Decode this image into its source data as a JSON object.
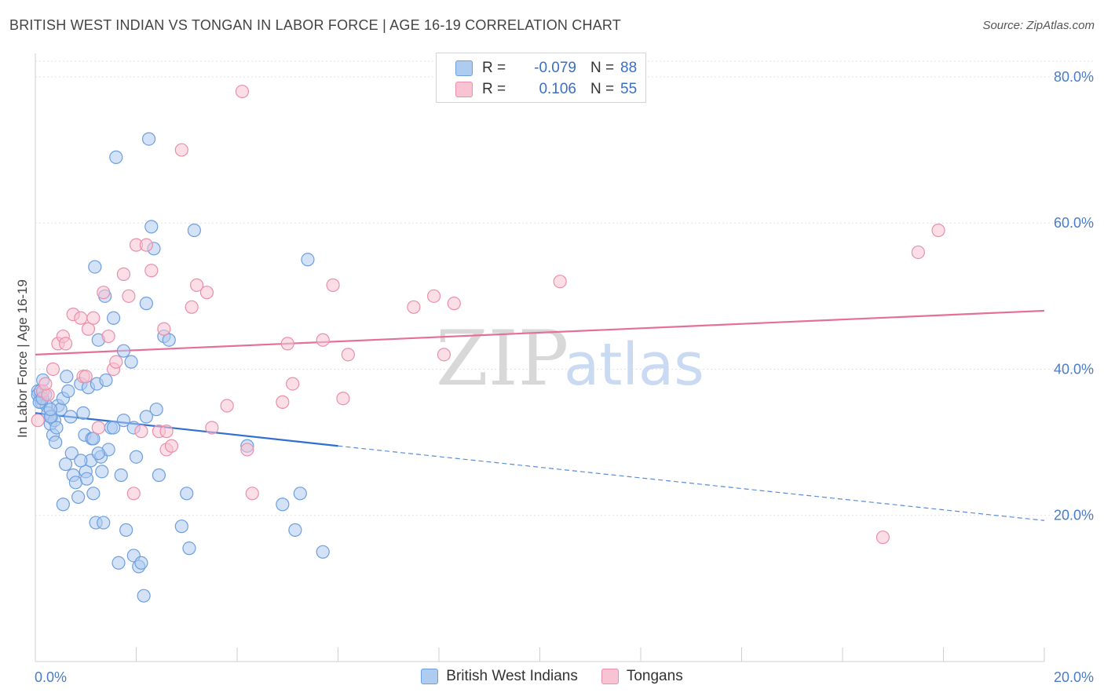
{
  "title": "BRITISH WEST INDIAN VS TONGAN IN LABOR FORCE | AGE 16-19 CORRELATION CHART",
  "source": "Source: ZipAtlas.com",
  "watermark": {
    "zip": "ZIP",
    "atlas": "atlas"
  },
  "legend": {
    "rows": [
      {
        "r_label": "R =",
        "r_value": "-0.079",
        "n_label": "N =",
        "n_value": "88"
      },
      {
        "r_label": "R =",
        "r_value": "0.106",
        "n_label": "N =",
        "n_value": "55"
      }
    ]
  },
  "bottom_legend": {
    "series1": "British West Indians",
    "series2": "Tongans"
  },
  "colors": {
    "blue_fill": "#aecbf0",
    "blue_stroke": "#6d9fdf",
    "blue_line": "#2f6fd1",
    "pink_fill": "#f8c3d2",
    "pink_stroke": "#ea8fab",
    "pink_line": "#e4709a",
    "grid": "#e3e3e3",
    "tick_text": "#4a7cc7"
  },
  "chart_data": {
    "type": "scatter",
    "title": "BRITISH WEST INDIAN VS TONGAN IN LABOR FORCE | AGE 16-19 CORRELATION CHART",
    "xlabel": "",
    "ylabel": "In Labor Force | Age 16-19",
    "xlim": [
      0,
      20
    ],
    "ylim": [
      0,
      83
    ],
    "x_tick_labels": [
      "0.0%",
      "20.0%"
    ],
    "y_ticks": [
      20,
      40,
      60,
      80
    ],
    "y_tick_labels": [
      "20.0%",
      "40.0%",
      "60.0%",
      "80.0%"
    ],
    "series": [
      {
        "name": "British West Indians",
        "r": -0.079,
        "n": 88,
        "trend": {
          "x0": 0,
          "y0": 34.0,
          "x1": 6,
          "y1": 29.5,
          "dash_to_x": 20,
          "dash_to_y": 19.3
        },
        "points": [
          [
            0.05,
            37.0
          ],
          [
            0.1,
            36.0
          ],
          [
            0.12,
            35.5
          ],
          [
            0.15,
            38.5
          ],
          [
            0.2,
            36.5
          ],
          [
            0.22,
            35.0
          ],
          [
            0.25,
            34.0
          ],
          [
            0.3,
            32.5
          ],
          [
            0.32,
            33.5
          ],
          [
            0.35,
            31.0
          ],
          [
            0.38,
            33.0
          ],
          [
            0.4,
            30.0
          ],
          [
            0.45,
            35.0
          ],
          [
            0.5,
            34.5
          ],
          [
            0.55,
            36.0
          ],
          [
            0.6,
            27.0
          ],
          [
            0.62,
            39.0
          ],
          [
            0.65,
            37.0
          ],
          [
            0.7,
            33.5
          ],
          [
            0.72,
            28.5
          ],
          [
            0.75,
            25.5
          ],
          [
            0.8,
            24.5
          ],
          [
            0.85,
            22.5
          ],
          [
            0.9,
            38.0
          ],
          [
            0.95,
            34.0
          ],
          [
            0.98,
            31.0
          ],
          [
            1.0,
            26.0
          ],
          [
            1.02,
            25.0
          ],
          [
            1.05,
            37.5
          ],
          [
            1.1,
            27.5
          ],
          [
            1.12,
            30.5
          ],
          [
            1.15,
            23.0
          ],
          [
            1.18,
            54.0
          ],
          [
            1.2,
            19.0
          ],
          [
            1.22,
            38.0
          ],
          [
            1.25,
            44.0
          ],
          [
            1.3,
            28.0
          ],
          [
            1.32,
            26.0
          ],
          [
            1.35,
            19.0
          ],
          [
            1.38,
            50.0
          ],
          [
            1.4,
            38.5
          ],
          [
            1.45,
            29.0
          ],
          [
            1.5,
            32.0
          ],
          [
            1.55,
            47.0
          ],
          [
            1.6,
            69.0
          ],
          [
            1.65,
            13.5
          ],
          [
            1.7,
            25.5
          ],
          [
            1.75,
            42.5
          ],
          [
            1.8,
            18.0
          ],
          [
            1.9,
            41.0
          ],
          [
            1.95,
            14.5
          ],
          [
            2.0,
            28.0
          ],
          [
            2.05,
            13.0
          ],
          [
            2.1,
            13.5
          ],
          [
            2.15,
            9.0
          ],
          [
            2.2,
            49.0
          ],
          [
            2.25,
            71.5
          ],
          [
            2.3,
            59.5
          ],
          [
            2.35,
            56.5
          ],
          [
            2.45,
            25.5
          ],
          [
            2.55,
            44.5
          ],
          [
            2.65,
            44.0
          ],
          [
            2.9,
            18.5
          ],
          [
            3.0,
            23.0
          ],
          [
            3.05,
            15.5
          ],
          [
            3.15,
            59.0
          ],
          [
            4.2,
            29.5
          ],
          [
            4.9,
            21.5
          ],
          [
            5.15,
            18.0
          ],
          [
            5.4,
            55.0
          ],
          [
            5.7,
            15.0
          ],
          [
            2.4,
            34.5
          ],
          [
            0.05,
            36.5
          ],
          [
            0.08,
            35.5
          ],
          [
            0.1,
            37.0
          ],
          [
            0.14,
            36.0
          ],
          [
            0.3,
            33.5
          ],
          [
            0.42,
            32.0
          ],
          [
            0.55,
            21.5
          ],
          [
            0.9,
            27.5
          ],
          [
            1.25,
            28.5
          ],
          [
            1.55,
            32.0
          ],
          [
            1.75,
            33.0
          ],
          [
            2.2,
            33.5
          ],
          [
            1.95,
            32.0
          ],
          [
            5.25,
            23.0
          ],
          [
            0.3,
            34.5
          ],
          [
            1.15,
            30.5
          ]
        ]
      },
      {
        "name": "Tongans",
        "r": 0.106,
        "n": 55,
        "trend": {
          "x0": 0,
          "y0": 42.0,
          "x1": 20,
          "y1": 48.0
        },
        "points": [
          [
            0.05,
            33.0
          ],
          [
            0.15,
            37.0
          ],
          [
            0.25,
            36.5
          ],
          [
            0.35,
            40.0
          ],
          [
            0.45,
            43.5
          ],
          [
            0.55,
            44.5
          ],
          [
            0.6,
            43.5
          ],
          [
            0.75,
            47.5
          ],
          [
            0.9,
            47.0
          ],
          [
            0.95,
            39.0
          ],
          [
            1.05,
            45.5
          ],
          [
            1.15,
            47.0
          ],
          [
            1.25,
            32.0
          ],
          [
            1.35,
            50.5
          ],
          [
            1.45,
            44.5
          ],
          [
            1.55,
            40.0
          ],
          [
            1.6,
            41.0
          ],
          [
            1.75,
            53.0
          ],
          [
            1.85,
            50.0
          ],
          [
            1.95,
            23.0
          ],
          [
            2.0,
            57.0
          ],
          [
            2.1,
            31.5
          ],
          [
            2.2,
            57.0
          ],
          [
            2.3,
            53.5
          ],
          [
            2.45,
            31.5
          ],
          [
            2.55,
            45.5
          ],
          [
            2.6,
            29.0
          ],
          [
            2.7,
            29.5
          ],
          [
            2.9,
            70.0
          ],
          [
            3.1,
            48.5
          ],
          [
            3.2,
            51.5
          ],
          [
            3.4,
            50.5
          ],
          [
            3.5,
            32.0
          ],
          [
            3.8,
            35.0
          ],
          [
            4.1,
            78.0
          ],
          [
            4.2,
            29.0
          ],
          [
            4.3,
            23.0
          ],
          [
            4.9,
            35.5
          ],
          [
            5.0,
            43.5
          ],
          [
            5.1,
            38.0
          ],
          [
            5.7,
            44.0
          ],
          [
            5.9,
            51.5
          ],
          [
            6.1,
            36.0
          ],
          [
            6.2,
            42.0
          ],
          [
            7.5,
            48.5
          ],
          [
            7.9,
            50.0
          ],
          [
            8.1,
            42.0
          ],
          [
            8.3,
            49.0
          ],
          [
            10.4,
            52.0
          ],
          [
            16.8,
            17.0
          ],
          [
            17.5,
            56.0
          ],
          [
            17.9,
            59.0
          ],
          [
            0.2,
            38.0
          ],
          [
            1.0,
            39.0
          ],
          [
            2.6,
            31.5
          ]
        ]
      }
    ]
  }
}
